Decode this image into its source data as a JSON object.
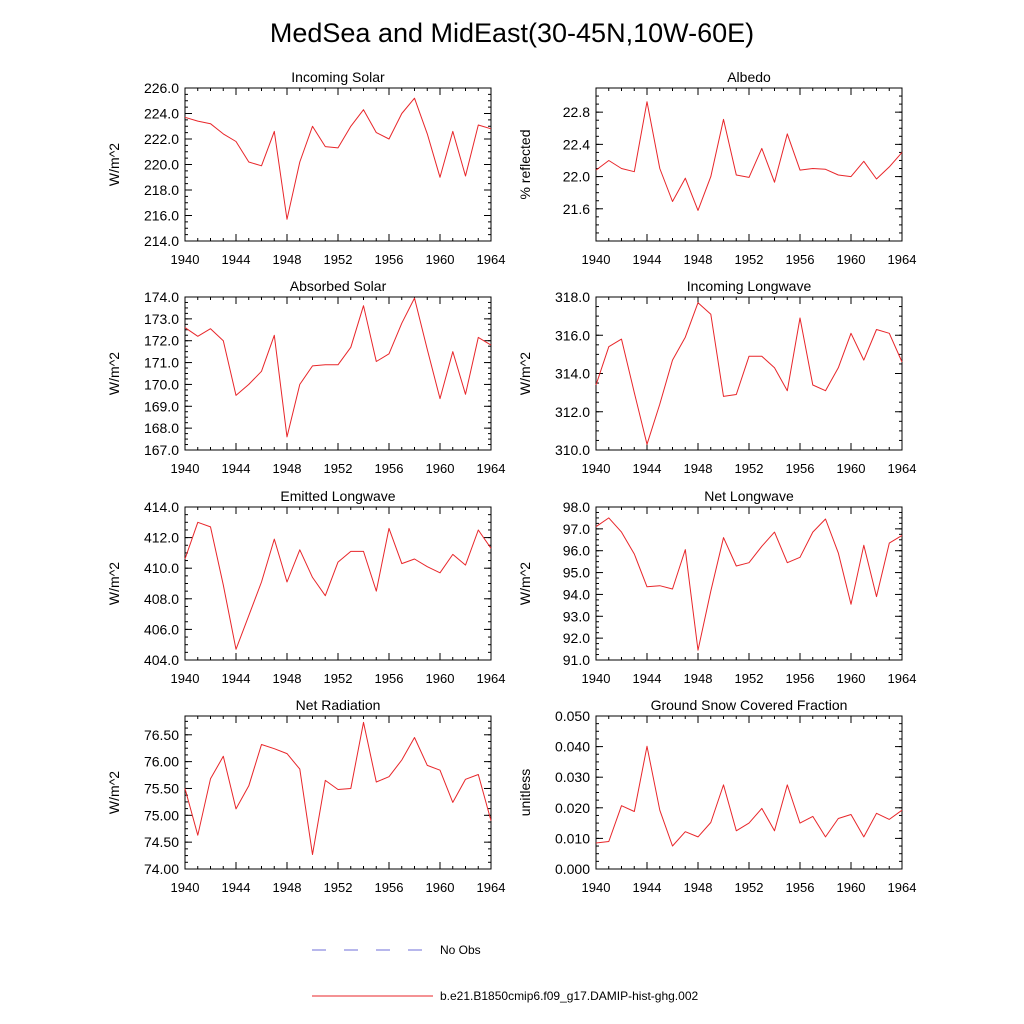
{
  "figure": {
    "title": "MedSea and MidEast(30-45N,10W-60E)"
  },
  "legend": {
    "entries": [
      {
        "label": "No Obs",
        "color": "#6f6fd8",
        "style": "dashed"
      },
      {
        "label": "b.e21.B1850cmip6.f09_g17.DAMIP-hist-ghg.002",
        "color": "#e8262a",
        "style": "solid"
      }
    ]
  },
  "series_color": "#e8262a",
  "chart_data": [
    {
      "type": "line",
      "title": "Incoming Solar",
      "ylabel": "W/m^2",
      "xlim": [
        1940,
        1964
      ],
      "ylim": [
        214,
        226
      ],
      "xticks": [
        1940,
        1944,
        1948,
        1952,
        1956,
        1960,
        1964
      ],
      "xtick_labels": [
        "1940",
        "1944",
        "1948",
        "1952",
        "1956",
        "1960",
        "1964"
      ],
      "yticks": [
        214,
        216,
        218,
        220,
        222,
        224,
        226
      ],
      "ytick_labels": [
        "214.0",
        "216.0",
        "218.0",
        "220.0",
        "222.0",
        "224.0",
        "226.0"
      ],
      "x": [
        1940,
        1941,
        1942,
        1943,
        1944,
        1945,
        1946,
        1947,
        1948,
        1949,
        1950,
        1951,
        1952,
        1953,
        1954,
        1955,
        1956,
        1957,
        1958,
        1959,
        1960,
        1961,
        1962,
        1963,
        1964
      ],
      "series": [
        {
          "name": "b.e21.B1850cmip6.f09_g17.DAMIP-hist-ghg.002",
          "values": [
            223.7,
            223.4,
            223.2,
            222.4,
            221.8,
            220.2,
            219.9,
            222.6,
            215.7,
            220.2,
            223.0,
            221.4,
            221.3,
            223.0,
            224.3,
            222.5,
            222.0,
            224.0,
            225.2,
            222.4,
            219.0,
            222.6,
            219.1,
            223.1,
            222.8
          ]
        }
      ]
    },
    {
      "type": "line",
      "title": "Albedo",
      "ylabel": "% reflected",
      "xlim": [
        1940,
        1964
      ],
      "ylim": [
        21.2,
        23.1
      ],
      "xticks": [
        1940,
        1944,
        1948,
        1952,
        1956,
        1960,
        1964
      ],
      "xtick_labels": [
        "1940",
        "1944",
        "1948",
        "1952",
        "1956",
        "1960",
        "1964"
      ],
      "yticks": [
        21.6,
        22.0,
        22.4,
        22.8
      ],
      "ytick_labels": [
        "21.6",
        "22.0",
        "22.4",
        "22.8"
      ],
      "x": [
        1940,
        1941,
        1942,
        1943,
        1944,
        1945,
        1946,
        1947,
        1948,
        1949,
        1950,
        1951,
        1952,
        1953,
        1954,
        1955,
        1956,
        1957,
        1958,
        1959,
        1960,
        1961,
        1962,
        1963,
        1964
      ],
      "series": [
        {
          "name": "b.e21.B1850cmip6.f09_g17.DAMIP-hist-ghg.002",
          "values": [
            22.08,
            22.2,
            22.1,
            22.06,
            22.93,
            22.1,
            21.69,
            21.98,
            21.58,
            22.0,
            22.71,
            22.02,
            21.99,
            22.35,
            21.93,
            22.53,
            22.08,
            22.1,
            22.09,
            22.02,
            22.0,
            22.19,
            21.97,
            22.12,
            22.3
          ]
        }
      ]
    },
    {
      "type": "line",
      "title": "Absorbed Solar",
      "ylabel": "W/m^2",
      "xlim": [
        1940,
        1964
      ],
      "ylim": [
        167,
        174
      ],
      "xticks": [
        1940,
        1944,
        1948,
        1952,
        1956,
        1960,
        1964
      ],
      "xtick_labels": [
        "1940",
        "1944",
        "1948",
        "1952",
        "1956",
        "1960",
        "1964"
      ],
      "yticks": [
        167,
        168,
        169,
        170,
        171,
        172,
        173,
        174
      ],
      "ytick_labels": [
        "167.0",
        "168.0",
        "169.0",
        "170.0",
        "171.0",
        "172.0",
        "173.0",
        "174.0"
      ],
      "x": [
        1940,
        1941,
        1942,
        1943,
        1944,
        1945,
        1946,
        1947,
        1948,
        1949,
        1950,
        1951,
        1952,
        1953,
        1954,
        1955,
        1956,
        1957,
        1958,
        1959,
        1960,
        1961,
        1962,
        1963,
        1964
      ],
      "series": [
        {
          "name": "b.e21.B1850cmip6.f09_g17.DAMIP-hist-ghg.002",
          "values": [
            172.6,
            172.2,
            172.55,
            172.0,
            169.5,
            170.0,
            170.6,
            172.25,
            167.6,
            170.0,
            170.85,
            170.9,
            170.9,
            171.7,
            173.6,
            171.05,
            171.4,
            172.8,
            173.95,
            171.6,
            169.35,
            171.5,
            169.55,
            172.15,
            171.8
          ]
        }
      ]
    },
    {
      "type": "line",
      "title": "Incoming Longwave",
      "ylabel": "W/m^2",
      "xlim": [
        1940,
        1964
      ],
      "ylim": [
        310,
        318
      ],
      "xticks": [
        1940,
        1944,
        1948,
        1952,
        1956,
        1960,
        1964
      ],
      "xtick_labels": [
        "1940",
        "1944",
        "1948",
        "1952",
        "1956",
        "1960",
        "1964"
      ],
      "yticks": [
        310,
        312,
        314,
        316,
        318
      ],
      "ytick_labels": [
        "310.0",
        "312.0",
        "314.0",
        "316.0",
        "318.0"
      ],
      "x": [
        1940,
        1941,
        1942,
        1943,
        1944,
        1945,
        1946,
        1947,
        1948,
        1949,
        1950,
        1951,
        1952,
        1953,
        1954,
        1955,
        1956,
        1957,
        1958,
        1959,
        1960,
        1961,
        1962,
        1963,
        1964
      ],
      "series": [
        {
          "name": "b.e21.B1850cmip6.f09_g17.DAMIP-hist-ghg.002",
          "values": [
            313.4,
            315.4,
            315.8,
            313.0,
            310.3,
            312.4,
            314.7,
            315.9,
            317.7,
            317.1,
            312.8,
            312.9,
            314.9,
            314.9,
            314.3,
            313.1,
            316.9,
            313.4,
            313.1,
            314.3,
            316.1,
            314.7,
            316.3,
            316.1,
            314.6
          ]
        }
      ]
    },
    {
      "type": "line",
      "title": "Emitted Longwave",
      "ylabel": "W/m^2",
      "xlim": [
        1940,
        1964
      ],
      "ylim": [
        404,
        414
      ],
      "xticks": [
        1940,
        1944,
        1948,
        1952,
        1956,
        1960,
        1964
      ],
      "xtick_labels": [
        "1940",
        "1944",
        "1948",
        "1952",
        "1956",
        "1960",
        "1964"
      ],
      "yticks": [
        404,
        406,
        408,
        410,
        412,
        414
      ],
      "ytick_labels": [
        "404.0",
        "406.0",
        "408.0",
        "410.0",
        "412.0",
        "414.0"
      ],
      "x": [
        1940,
        1941,
        1942,
        1943,
        1944,
        1945,
        1946,
        1947,
        1948,
        1949,
        1950,
        1951,
        1952,
        1953,
        1954,
        1955,
        1956,
        1957,
        1958,
        1959,
        1960,
        1961,
        1962,
        1963,
        1964
      ],
      "series": [
        {
          "name": "b.e21.B1850cmip6.f09_g17.DAMIP-hist-ghg.002",
          "values": [
            410.6,
            413.0,
            412.7,
            408.9,
            404.7,
            406.9,
            409.1,
            411.9,
            409.1,
            411.2,
            409.4,
            408.2,
            410.4,
            411.1,
            411.1,
            408.5,
            412.6,
            410.3,
            410.6,
            410.1,
            409.7,
            410.9,
            410.2,
            412.5,
            411.3
          ]
        }
      ]
    },
    {
      "type": "line",
      "title": "Net Longwave",
      "ylabel": "W/m^2",
      "xlim": [
        1940,
        1964
      ],
      "ylim": [
        91,
        98
      ],
      "xticks": [
        1940,
        1944,
        1948,
        1952,
        1956,
        1960,
        1964
      ],
      "xtick_labels": [
        "1940",
        "1944",
        "1948",
        "1952",
        "1956",
        "1960",
        "1964"
      ],
      "yticks": [
        91,
        92,
        93,
        94,
        95,
        96,
        97,
        98
      ],
      "ytick_labels": [
        "91.0",
        "92.0",
        "93.0",
        "94.0",
        "95.0",
        "96.0",
        "97.0",
        "98.0"
      ],
      "x": [
        1940,
        1941,
        1942,
        1943,
        1944,
        1945,
        1946,
        1947,
        1948,
        1949,
        1950,
        1951,
        1952,
        1953,
        1954,
        1955,
        1956,
        1957,
        1958,
        1959,
        1960,
        1961,
        1962,
        1963,
        1964
      ],
      "series": [
        {
          "name": "b.e21.B1850cmip6.f09_g17.DAMIP-hist-ghg.002",
          "values": [
            97.1,
            97.5,
            96.85,
            95.85,
            94.35,
            94.4,
            94.25,
            96.05,
            91.45,
            94.15,
            96.6,
            95.3,
            95.45,
            96.2,
            96.85,
            95.45,
            95.7,
            96.85,
            97.45,
            95.9,
            93.55,
            96.25,
            93.9,
            96.35,
            96.7
          ]
        }
      ]
    },
    {
      "type": "line",
      "title": "Net Radiation",
      "ylabel": "W/m^2",
      "xlim": [
        1940,
        1964
      ],
      "ylim": [
        74,
        76.85
      ],
      "xticks": [
        1940,
        1944,
        1948,
        1952,
        1956,
        1960,
        1964
      ],
      "xtick_labels": [
        "1940",
        "1944",
        "1948",
        "1952",
        "1956",
        "1960",
        "1964"
      ],
      "yticks": [
        74.0,
        74.5,
        75.0,
        75.5,
        76.0,
        76.5
      ],
      "ytick_labels": [
        "74.00",
        "74.50",
        "75.00",
        "75.50",
        "76.00",
        "76.50"
      ],
      "x": [
        1940,
        1941,
        1942,
        1943,
        1944,
        1945,
        1946,
        1947,
        1948,
        1949,
        1950,
        1951,
        1952,
        1953,
        1954,
        1955,
        1956,
        1957,
        1958,
        1959,
        1960,
        1961,
        1962,
        1963,
        1964
      ],
      "series": [
        {
          "name": "b.e21.B1850cmip6.f09_g17.DAMIP-hist-ghg.002",
          "values": [
            75.5,
            74.63,
            75.68,
            76.1,
            75.12,
            75.55,
            76.32,
            76.24,
            76.15,
            75.86,
            74.27,
            75.65,
            75.48,
            75.5,
            76.73,
            75.62,
            75.72,
            76.03,
            76.45,
            75.93,
            75.84,
            75.24,
            75.67,
            75.76,
            74.9
          ]
        }
      ]
    },
    {
      "type": "line",
      "title": "Ground Snow Covered Fraction",
      "ylabel": "unitless",
      "xlim": [
        1940,
        1964
      ],
      "ylim": [
        0,
        0.05
      ],
      "xticks": [
        1940,
        1944,
        1948,
        1952,
        1956,
        1960,
        1964
      ],
      "xtick_labels": [
        "1940",
        "1944",
        "1948",
        "1952",
        "1956",
        "1960",
        "1964"
      ],
      "yticks": [
        0.0,
        0.01,
        0.02,
        0.03,
        0.04,
        0.05
      ],
      "ytick_labels": [
        "0.000",
        "0.010",
        "0.020",
        "0.030",
        "0.040",
        "0.050"
      ],
      "x": [
        1940,
        1941,
        1942,
        1943,
        1944,
        1945,
        1946,
        1947,
        1948,
        1949,
        1950,
        1951,
        1952,
        1953,
        1954,
        1955,
        1956,
        1957,
        1958,
        1959,
        1960,
        1961,
        1962,
        1963,
        1964
      ],
      "series": [
        {
          "name": "b.e21.B1850cmip6.f09_g17.DAMIP-hist-ghg.002",
          "values": [
            0.0085,
            0.009,
            0.0207,
            0.0188,
            0.0401,
            0.0192,
            0.0075,
            0.0122,
            0.0105,
            0.0152,
            0.0275,
            0.0125,
            0.015,
            0.0198,
            0.0125,
            0.0275,
            0.015,
            0.0172,
            0.0105,
            0.0165,
            0.0178,
            0.0105,
            0.0182,
            0.0162,
            0.0192
          ]
        }
      ]
    }
  ]
}
